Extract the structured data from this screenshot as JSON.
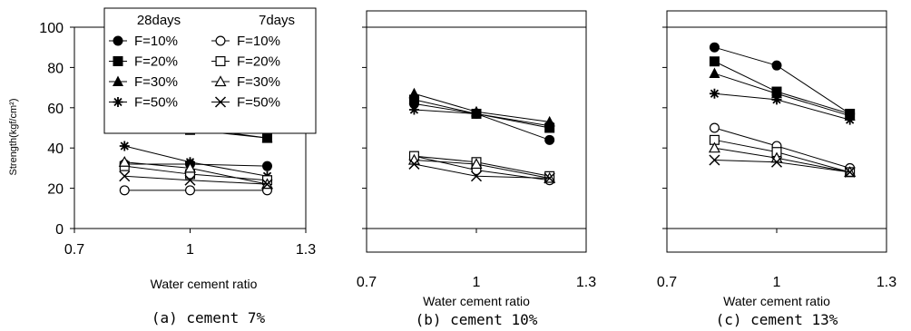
{
  "chart_data": [
    {
      "type": "line",
      "caption": "(a) cement 7%",
      "xlabel": "Water cement ratio",
      "ylabel": "Strength(kgf/cm²)",
      "xlim": [
        0.7,
        1.3
      ],
      "ylim": [
        0,
        100
      ],
      "xticks": [
        "0.7",
        "1",
        "1.3"
      ],
      "yticks": [
        "0",
        "20",
        "40",
        "60",
        "80",
        "100"
      ],
      "x": [
        0.83,
        1.0,
        1.2
      ],
      "legend": {
        "position": "top",
        "headers": [
          "28days",
          "7days"
        ],
        "entries": [
          {
            "col": 0,
            "label": "F=10%",
            "marker": "filled-circle"
          },
          {
            "col": 0,
            "label": "F=20%",
            "marker": "filled-square"
          },
          {
            "col": 0,
            "label": "F=30%",
            "marker": "filled-triangle"
          },
          {
            "col": 0,
            "label": "F=50%",
            "marker": "star"
          },
          {
            "col": 1,
            "label": "F=10%",
            "marker": "open-circle"
          },
          {
            "col": 1,
            "label": "F=20%",
            "marker": "open-square"
          },
          {
            "col": 1,
            "label": "F=30%",
            "marker": "open-triangle"
          },
          {
            "col": 1,
            "label": "F=50%",
            "marker": "x"
          }
        ]
      },
      "series": [
        {
          "name": "28days F=10%",
          "marker": "filled-circle",
          "values": [
            32,
            32,
            31
          ]
        },
        {
          "name": "28days F=20%",
          "marker": "filled-square",
          "values": [
            53,
            49,
            45
          ]
        },
        {
          "name": "28days F=30%",
          "marker": "filled-triangle",
          "values": [
            57,
            50,
            45
          ]
        },
        {
          "name": "28days F=50%",
          "marker": "star",
          "values": [
            41,
            33,
            26
          ]
        },
        {
          "name": "7days F=10%",
          "marker": "open-circle",
          "values": [
            19,
            19,
            19
          ]
        },
        {
          "name": "7days F=20%",
          "marker": "open-square",
          "values": [
            31,
            27,
            24
          ]
        },
        {
          "name": "7days F=30%",
          "marker": "open-triangle",
          "values": [
            33,
            30,
            22
          ]
        },
        {
          "name": "7days F=50%",
          "marker": "x",
          "values": [
            26,
            24,
            22
          ]
        }
      ]
    },
    {
      "type": "line",
      "caption": "(b) cement 10%",
      "xlabel": "Water cement ratio",
      "ylabel": "",
      "xlim": [
        0.7,
        1.3
      ],
      "ylim": [
        0,
        100
      ],
      "xticks": [
        "0.7",
        "1",
        "1.3"
      ],
      "yticks": [],
      "x": [
        0.83,
        1.0,
        1.2
      ],
      "series": [
        {
          "name": "28days F=10%",
          "marker": "filled-circle",
          "values": [
            62,
            57,
            44
          ]
        },
        {
          "name": "28days F=20%",
          "marker": "filled-square",
          "values": [
            64,
            57,
            50
          ]
        },
        {
          "name": "28days F=30%",
          "marker": "filled-triangle",
          "values": [
            67,
            58,
            53
          ]
        },
        {
          "name": "28days F=50%",
          "marker": "star",
          "values": [
            59,
            57,
            51
          ]
        },
        {
          "name": "7days F=10%",
          "marker": "open-circle",
          "values": [
            36,
            29,
            24
          ]
        },
        {
          "name": "7days F=20%",
          "marker": "open-square",
          "values": [
            36,
            33,
            26
          ]
        },
        {
          "name": "7days F=30%",
          "marker": "open-triangle",
          "values": [
            34,
            32,
            25
          ]
        },
        {
          "name": "7days F=50%",
          "marker": "x",
          "values": [
            32,
            26,
            25
          ]
        }
      ]
    },
    {
      "type": "line",
      "caption": "(c) cement 13%",
      "xlabel": "Water cement ratio",
      "ylabel": "",
      "xlim": [
        0.7,
        1.3
      ],
      "ylim": [
        0,
        100
      ],
      "xticks": [
        "0.7",
        "1",
        "1.3"
      ],
      "yticks": [],
      "x": [
        0.83,
        1.0,
        1.2
      ],
      "series": [
        {
          "name": "28days F=10%",
          "marker": "filled-circle",
          "values": [
            90,
            81,
            57
          ]
        },
        {
          "name": "28days F=20%",
          "marker": "filled-square",
          "values": [
            83,
            68,
            57
          ]
        },
        {
          "name": "28days F=30%",
          "marker": "filled-triangle",
          "values": [
            77,
            67,
            56
          ]
        },
        {
          "name": "28days F=50%",
          "marker": "star",
          "values": [
            67,
            64,
            54
          ]
        },
        {
          "name": "7days F=10%",
          "marker": "open-circle",
          "values": [
            50,
            41,
            30
          ]
        },
        {
          "name": "7days F=20%",
          "marker": "open-square",
          "values": [
            44,
            38,
            28
          ]
        },
        {
          "name": "7days F=30%",
          "marker": "open-triangle",
          "values": [
            40,
            35,
            28
          ]
        },
        {
          "name": "7days F=50%",
          "marker": "x",
          "values": [
            34,
            33,
            28
          ]
        }
      ]
    }
  ]
}
